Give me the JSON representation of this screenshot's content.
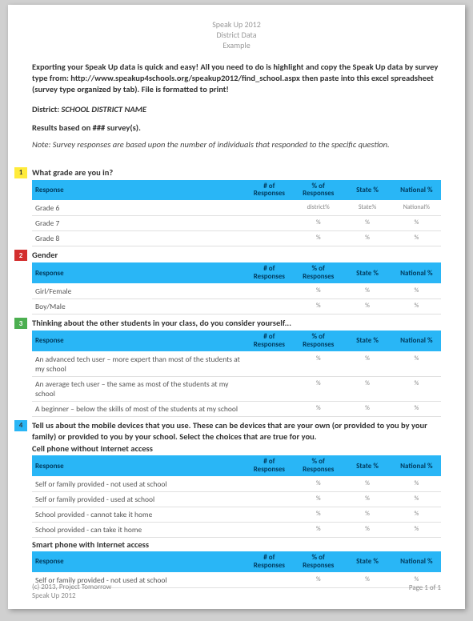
{
  "header": {
    "line1": "Speak Up 2012",
    "line2": "District Data",
    "line3": "Example"
  },
  "intro": "Exporting your Speak Up data is quick and easy! All you need to do is highlight and copy the Speak Up data by survey type from: http://www.speakup4schools.org/speakup2012/find_school.aspx then paste into this excel spreadsheet (survey type organized by tab). File is formatted to print!",
  "district_label": "District:",
  "district_name": "SCHOOL DISTRICT NAME",
  "results": "Results based on ### survey(s).",
  "note": "Note: Survey responses are based upon the number of individuals that responded to the specific question.",
  "column_headers": {
    "response": "Response",
    "num": "# of Responses",
    "pct": "% of Responses",
    "state": "State %",
    "national": "National %"
  },
  "placeholder": {
    "district": "district%",
    "state": "State%",
    "national": "National%",
    "dash": "%"
  },
  "questions": [
    {
      "num": "1",
      "color": "yellow",
      "title": "What grade are you in?",
      "rows": [
        {
          "label": "Grade 6",
          "show_headers": true
        },
        {
          "label": "Grade 7"
        },
        {
          "label": "Grade 8"
        }
      ]
    },
    {
      "num": "2",
      "color": "red",
      "title": "Gender",
      "rows": [
        {
          "label": "Girl/Female"
        },
        {
          "label": "Boy/Male"
        }
      ]
    },
    {
      "num": "3",
      "color": "green",
      "title": "Thinking about the other students in your class, do you consider yourself...",
      "rows": [
        {
          "label": "An advanced tech user – more expert than most of the students at my school"
        },
        {
          "label": "An average tech user – the same as most of the students at my school"
        },
        {
          "label": "A beginner – below the skills of most of the students at my school"
        }
      ]
    },
    {
      "num": "4",
      "color": "blue",
      "title": "Tell us about the mobile devices that you use. These can be devices that are your own (or provided to you by your family) or provided to you by your school. Select the choices that are true for you.",
      "subsections": [
        {
          "subtitle": "Cell phone without Internet access",
          "rows": [
            {
              "label": "Self or family provided - not used at school"
            },
            {
              "label": "Self or family provided - used at school"
            },
            {
              "label": "School provided - cannot take it home"
            },
            {
              "label": "School provided - can take it home"
            }
          ]
        },
        {
          "subtitle": "Smart phone with Internet access",
          "rows": [
            {
              "label": "Self or family provided - not used at school"
            }
          ]
        }
      ]
    }
  ],
  "footer": {
    "copyright": "(c) 2013, Project Tomorrow",
    "project": "Speak Up 2012",
    "page": "Page 1 of 1"
  }
}
